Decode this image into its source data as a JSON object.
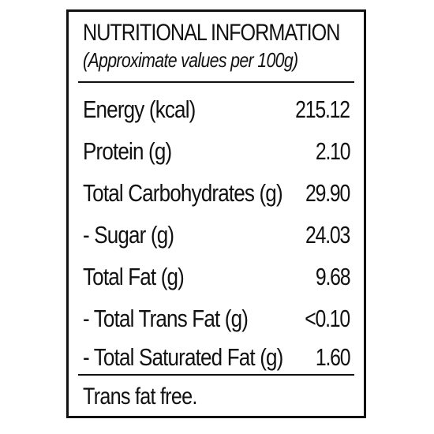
{
  "panel": {
    "title": "NUTRITIONAL INFORMATION",
    "subtitle": "(Approximate values per 100g)",
    "rows": [
      {
        "label": "Energy (kcal)",
        "value": "215.12"
      },
      {
        "label": "Protein (g)",
        "value": "2.10"
      },
      {
        "label": "Total Carbohydrates (g)",
        "value": "29.90"
      },
      {
        "label": "- Sugar (g)",
        "value": "24.03"
      },
      {
        "label": "Total Fat (g)",
        "value": "9.68"
      },
      {
        "label": "- Total Trans Fat (g)",
        "value": "<0.10"
      },
      {
        "label": "- Total Saturated Fat (g)",
        "value": "1.60"
      }
    ],
    "footer": "Trans fat free."
  }
}
